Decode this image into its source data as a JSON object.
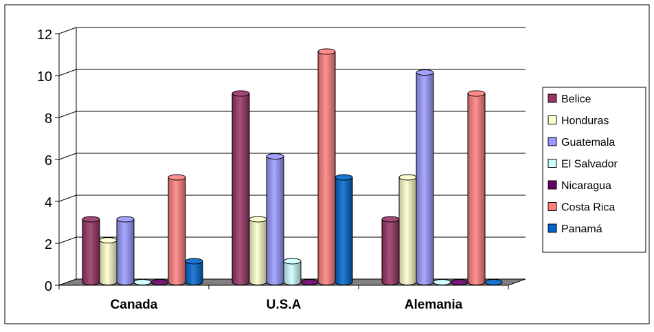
{
  "chart_data": {
    "type": "bar",
    "title": "",
    "xlabel": "",
    "ylabel": "",
    "ylim": [
      0,
      12
    ],
    "yticks": [
      "0",
      "2",
      "4",
      "6",
      "8",
      "10",
      "12"
    ],
    "grid": true,
    "legend_position": "right",
    "style": "3d-cylinder",
    "categories": [
      "Canada",
      "U.S.A",
      "Alemania"
    ],
    "series": [
      {
        "name": "Belice",
        "color": "#993366",
        "values": [
          3,
          9,
          3
        ]
      },
      {
        "name": "Honduras",
        "color": "#FFFFCC",
        "values": [
          2,
          3,
          5
        ]
      },
      {
        "name": "Guatemala",
        "color": "#9999FF",
        "values": [
          3,
          6,
          10
        ]
      },
      {
        "name": "El Salvador",
        "color": "#CCFFFF",
        "values": [
          0,
          1,
          0
        ]
      },
      {
        "name": "Nicaragua",
        "color": "#660066",
        "values": [
          0,
          0,
          0
        ]
      },
      {
        "name": "Costa Rica",
        "color": "#FF8080",
        "values": [
          5,
          11,
          9
        ]
      },
      {
        "name": "Panamá",
        "color": "#0066CC",
        "values": [
          1,
          5,
          0
        ]
      }
    ]
  }
}
